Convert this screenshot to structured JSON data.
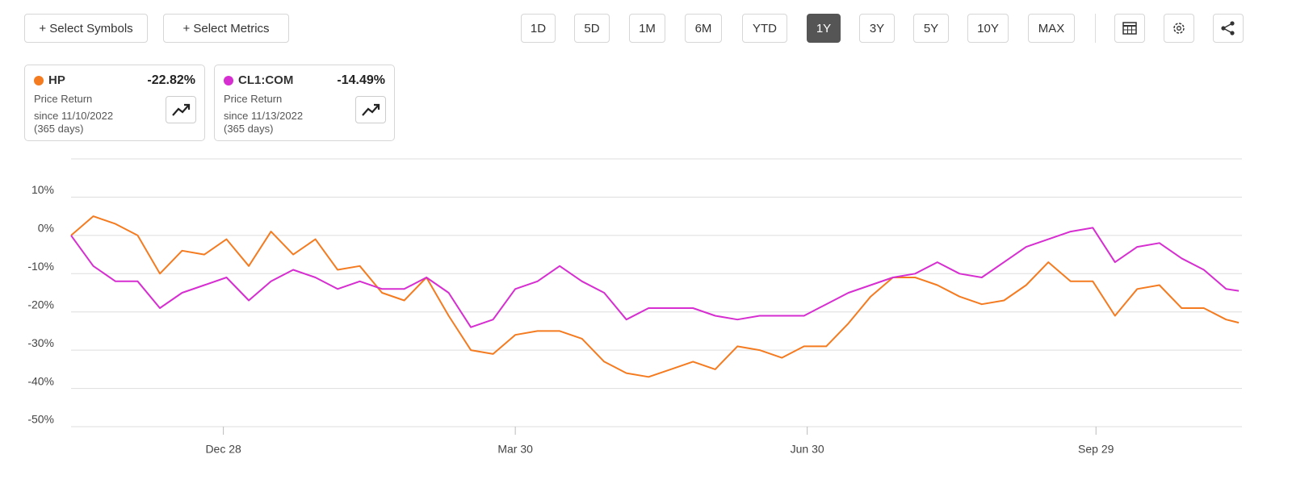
{
  "toolbar": {
    "buttons": [
      "+ Select Symbols",
      "+ Select Metrics"
    ],
    "ranges": [
      "1D",
      "5D",
      "1M",
      "6M",
      "YTD",
      "1Y",
      "3Y",
      "5Y",
      "10Y",
      "MAX"
    ],
    "active_range": "1Y"
  },
  "cards": [
    {
      "change": "-22.82%",
      "metric": "Price Return",
      "since": "since 11/10/2022",
      "days": "(365 days)"
    },
    {
      "change": "-14.49%",
      "metric": "Price Return",
      "since": "since 11/13/2022",
      "days": "(365 days)"
    }
  ],
  "chart_data": {
    "type": "line",
    "x": [
      "2022-11-10",
      "2022-11-17",
      "2022-11-24",
      "2022-12-01",
      "2022-12-08",
      "2022-12-15",
      "2022-12-22",
      "2022-12-29",
      "2023-01-05",
      "2023-01-12",
      "2023-01-19",
      "2023-01-26",
      "2023-02-02",
      "2023-02-09",
      "2023-02-16",
      "2023-02-23",
      "2023-03-02",
      "2023-03-09",
      "2023-03-16",
      "2023-03-23",
      "2023-03-30",
      "2023-04-06",
      "2023-04-13",
      "2023-04-20",
      "2023-04-27",
      "2023-05-04",
      "2023-05-11",
      "2023-05-18",
      "2023-05-25",
      "2023-06-01",
      "2023-06-08",
      "2023-06-15",
      "2023-06-22",
      "2023-06-29",
      "2023-07-06",
      "2023-07-13",
      "2023-07-20",
      "2023-07-27",
      "2023-08-03",
      "2023-08-10",
      "2023-08-17",
      "2023-08-24",
      "2023-08-31",
      "2023-09-07",
      "2023-09-14",
      "2023-09-21",
      "2023-09-28",
      "2023-10-05",
      "2023-10-12",
      "2023-10-19",
      "2023-10-26",
      "2023-11-02",
      "2023-11-09",
      "2023-11-13"
    ],
    "series": [
      {
        "name": "HP",
        "color": "#f47b20",
        "values": [
          0,
          5,
          3,
          0,
          -10,
          -4,
          -5,
          -1,
          -8,
          1,
          -5,
          -1,
          -9,
          -8,
          -15,
          -17,
          -11,
          -21,
          -30,
          -31,
          -26,
          -25,
          -25,
          -27,
          -33,
          -36,
          -37,
          -35,
          -33,
          -35,
          -29,
          -30,
          -32,
          -29,
          -29,
          -23,
          -16,
          -11,
          -11,
          -13,
          -16,
          -18,
          -17,
          -13,
          -7,
          -12,
          -12,
          -21,
          -14,
          -13,
          -19,
          -19,
          -22,
          -22.82
        ]
      },
      {
        "name": "CL1:COM",
        "color": "#d62ed0",
        "values": [
          0,
          -8,
          -12,
          -12,
          -19,
          -15,
          -13,
          -11,
          -17,
          -12,
          -9,
          -11,
          -14,
          -12,
          -14,
          -14,
          -11,
          -15,
          -24,
          -22,
          -14,
          -12,
          -8,
          -12,
          -15,
          -22,
          -19,
          -19,
          -19,
          -21,
          -22,
          -21,
          -21,
          -21,
          -18,
          -15,
          -13,
          -11,
          -10,
          -7,
          -10,
          -11,
          -7,
          -3,
          -1,
          1,
          2,
          -7,
          -3,
          -2,
          -6,
          -9,
          -14,
          -14.49
        ]
      }
    ],
    "xlim": [
      "2022-11-10",
      "2023-11-14"
    ],
    "xticks": [
      {
        "value": "2022-12-28",
        "label": "Dec 28"
      },
      {
        "value": "2023-03-30",
        "label": "Mar 30"
      },
      {
        "value": "2023-06-30",
        "label": "Jun 30"
      },
      {
        "value": "2023-09-29",
        "label": "Sep 29"
      }
    ],
    "ylim": [
      -50,
      20
    ],
    "yticks": [
      {
        "value": -50,
        "label": "-50%"
      },
      {
        "value": -40,
        "label": "-40%"
      },
      {
        "value": -30,
        "label": "-30%"
      },
      {
        "value": -20,
        "label": "-20%"
      },
      {
        "value": -10,
        "label": "-10%"
      },
      {
        "value": 0,
        "label": "0%"
      },
      {
        "value": 10,
        "label": "10%"
      }
    ],
    "grid": true
  }
}
